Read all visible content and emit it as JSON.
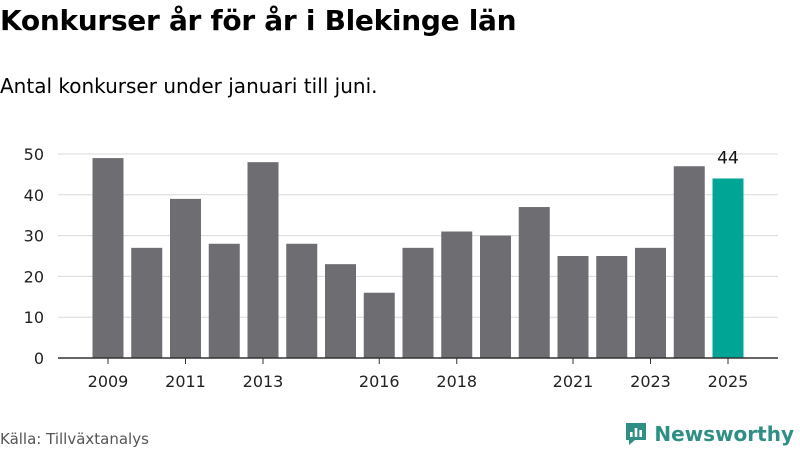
{
  "title": "Konkurser år för år i Blekinge län",
  "subtitle": "Antal konkurser under januari till juni.",
  "source": "Källa: Tillväxtanalys",
  "brand": {
    "name": "Newsworthy",
    "icon": "newsworthy-logo-icon"
  },
  "colors": {
    "bar": "#6e6d72",
    "highlight": "#00a596",
    "grid": "#d9d9d9",
    "axis": "#333333",
    "brand": "#2f8f84"
  },
  "chart_data": {
    "type": "bar",
    "categories": [
      "2009",
      "2010",
      "2011",
      "2012",
      "2013",
      "2014",
      "2015",
      "2016",
      "2017",
      "2018",
      "2019",
      "2020",
      "2021",
      "2022",
      "2023",
      "2024",
      "2025"
    ],
    "values": [
      49,
      27,
      39,
      28,
      48,
      28,
      23,
      16,
      27,
      31,
      30,
      37,
      25,
      25,
      27,
      47,
      44
    ],
    "x_tick_labels": [
      "2009",
      "2011",
      "2013",
      "2016",
      "2018",
      "2021",
      "2023",
      "2025"
    ],
    "y_ticks": [
      0,
      10,
      20,
      30,
      40,
      50
    ],
    "ylim": [
      0,
      50
    ],
    "highlight": {
      "category": "2025",
      "label": "44"
    },
    "grid": true
  }
}
